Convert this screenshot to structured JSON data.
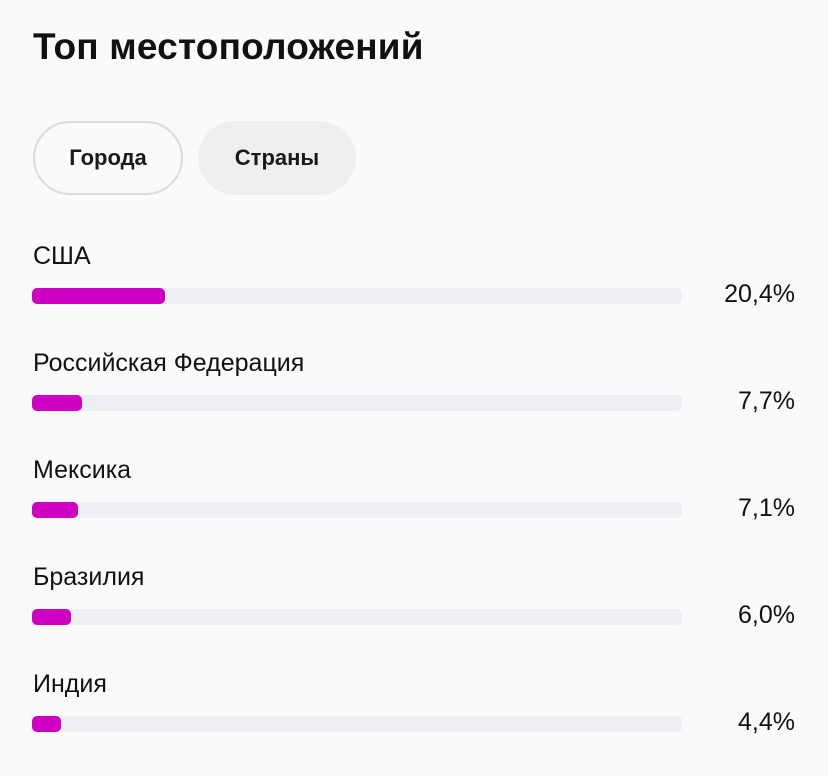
{
  "title": "Топ местоположений",
  "tabs": [
    {
      "label": "Города",
      "selected": false
    },
    {
      "label": "Страны",
      "selected": true
    }
  ],
  "accent": "#d000c3",
  "locations": [
    {
      "name": "США",
      "percent_label": "20,4%",
      "value": 20.4
    },
    {
      "name": "Российская Федерация",
      "percent_label": "7,7%",
      "value": 7.7
    },
    {
      "name": "Мексика",
      "percent_label": "7,1%",
      "value": 7.1
    },
    {
      "name": "Бразилия",
      "percent_label": "6,0%",
      "value": 6.0
    },
    {
      "name": "Индия",
      "percent_label": "4,4%",
      "value": 4.4
    }
  ]
}
